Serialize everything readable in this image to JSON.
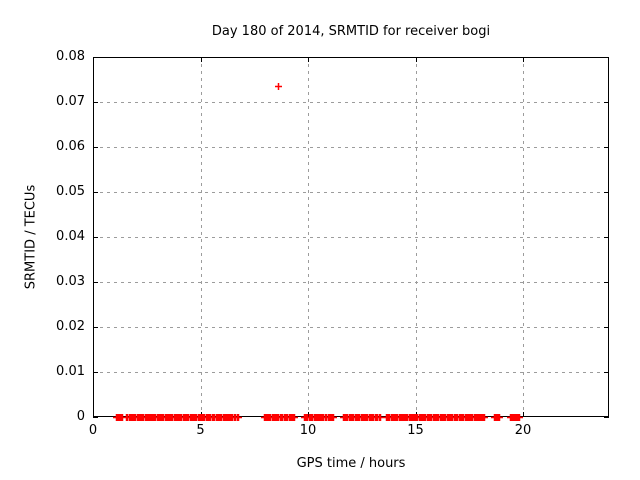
{
  "colors": {
    "background": "#ffffff",
    "axis": "#000000",
    "grid": "#9c9c9c",
    "text": "#000000",
    "marker": "#ff0000"
  },
  "chart_data": {
    "type": "scatter",
    "title": "Day 180 of 2014, SRMTID for receiver bogi",
    "xlabel": "GPS time / hours",
    "ylabel": "SRMTID / TECUs",
    "xlim": [
      0,
      24
    ],
    "ylim": [
      0,
      0.08
    ],
    "xtick_values": [
      0,
      5,
      10,
      15,
      20
    ],
    "xtick_labels": [
      "0",
      "5",
      "10",
      "15",
      "20"
    ],
    "ytick_values": [
      0,
      0.01,
      0.02,
      0.03,
      0.04,
      0.05,
      0.06,
      0.07,
      0.08
    ],
    "ytick_labels": [
      "0",
      "0.01",
      "0.02",
      "0.03",
      "0.04",
      "0.05",
      "0.06",
      "0.07",
      "0.08"
    ],
    "grid": true,
    "legend": false,
    "series": [
      {
        "name": "SRMTID",
        "marker": "plus",
        "color": "#ff0000",
        "outlier_points": [
          {
            "x": 8.6,
            "y": 0.0735
          }
        ],
        "baseline_y": 0,
        "baseline_segments_x": [
          [
            1.07,
            1.16
          ],
          [
            1.21,
            1.35
          ],
          [
            1.53,
            1.58
          ],
          [
            1.67,
            1.77
          ],
          [
            1.81,
            2.56
          ],
          [
            2.6,
            2.74
          ],
          [
            2.79,
            3.12
          ],
          [
            3.17,
            3.38
          ],
          [
            3.44,
            4.0
          ],
          [
            4.06,
            4.81
          ],
          [
            4.87,
            4.93
          ],
          [
            4.99,
            5.18
          ],
          [
            5.27,
            5.61
          ],
          [
            5.7,
            5.8
          ],
          [
            5.86,
            5.95
          ],
          [
            6.05,
            6.33
          ],
          [
            6.39,
            6.48
          ],
          [
            6.57,
            6.73
          ],
          [
            7.97,
            8.02
          ],
          [
            8.05,
            8.09
          ],
          [
            8.14,
            8.79
          ],
          [
            8.88,
            9.1
          ],
          [
            9.16,
            9.35
          ],
          [
            9.83,
            10.17
          ],
          [
            10.26,
            10.82
          ],
          [
            10.91,
            11.14
          ],
          [
            11.64,
            11.83
          ],
          [
            11.89,
            12.39
          ],
          [
            12.45,
            12.51
          ],
          [
            12.57,
            12.64
          ],
          [
            12.7,
            12.76
          ],
          [
            12.82,
            13.01
          ],
          [
            13.13,
            13.19
          ],
          [
            13.29,
            13.35
          ],
          [
            13.63,
            14.0
          ],
          [
            14.06,
            14.47
          ],
          [
            14.53,
            14.62
          ],
          [
            14.68,
            14.74
          ],
          [
            14.8,
            14.87
          ],
          [
            14.93,
            15.08
          ],
          [
            15.15,
            15.67
          ],
          [
            15.74,
            16.93
          ],
          [
            17.02,
            17.86
          ],
          [
            17.89,
            17.95
          ],
          [
            17.98,
            18.09
          ],
          [
            18.13,
            18.19
          ],
          [
            18.65,
            18.88
          ],
          [
            19.4,
            19.49
          ],
          [
            19.53,
            19.81
          ]
        ]
      }
    ]
  }
}
